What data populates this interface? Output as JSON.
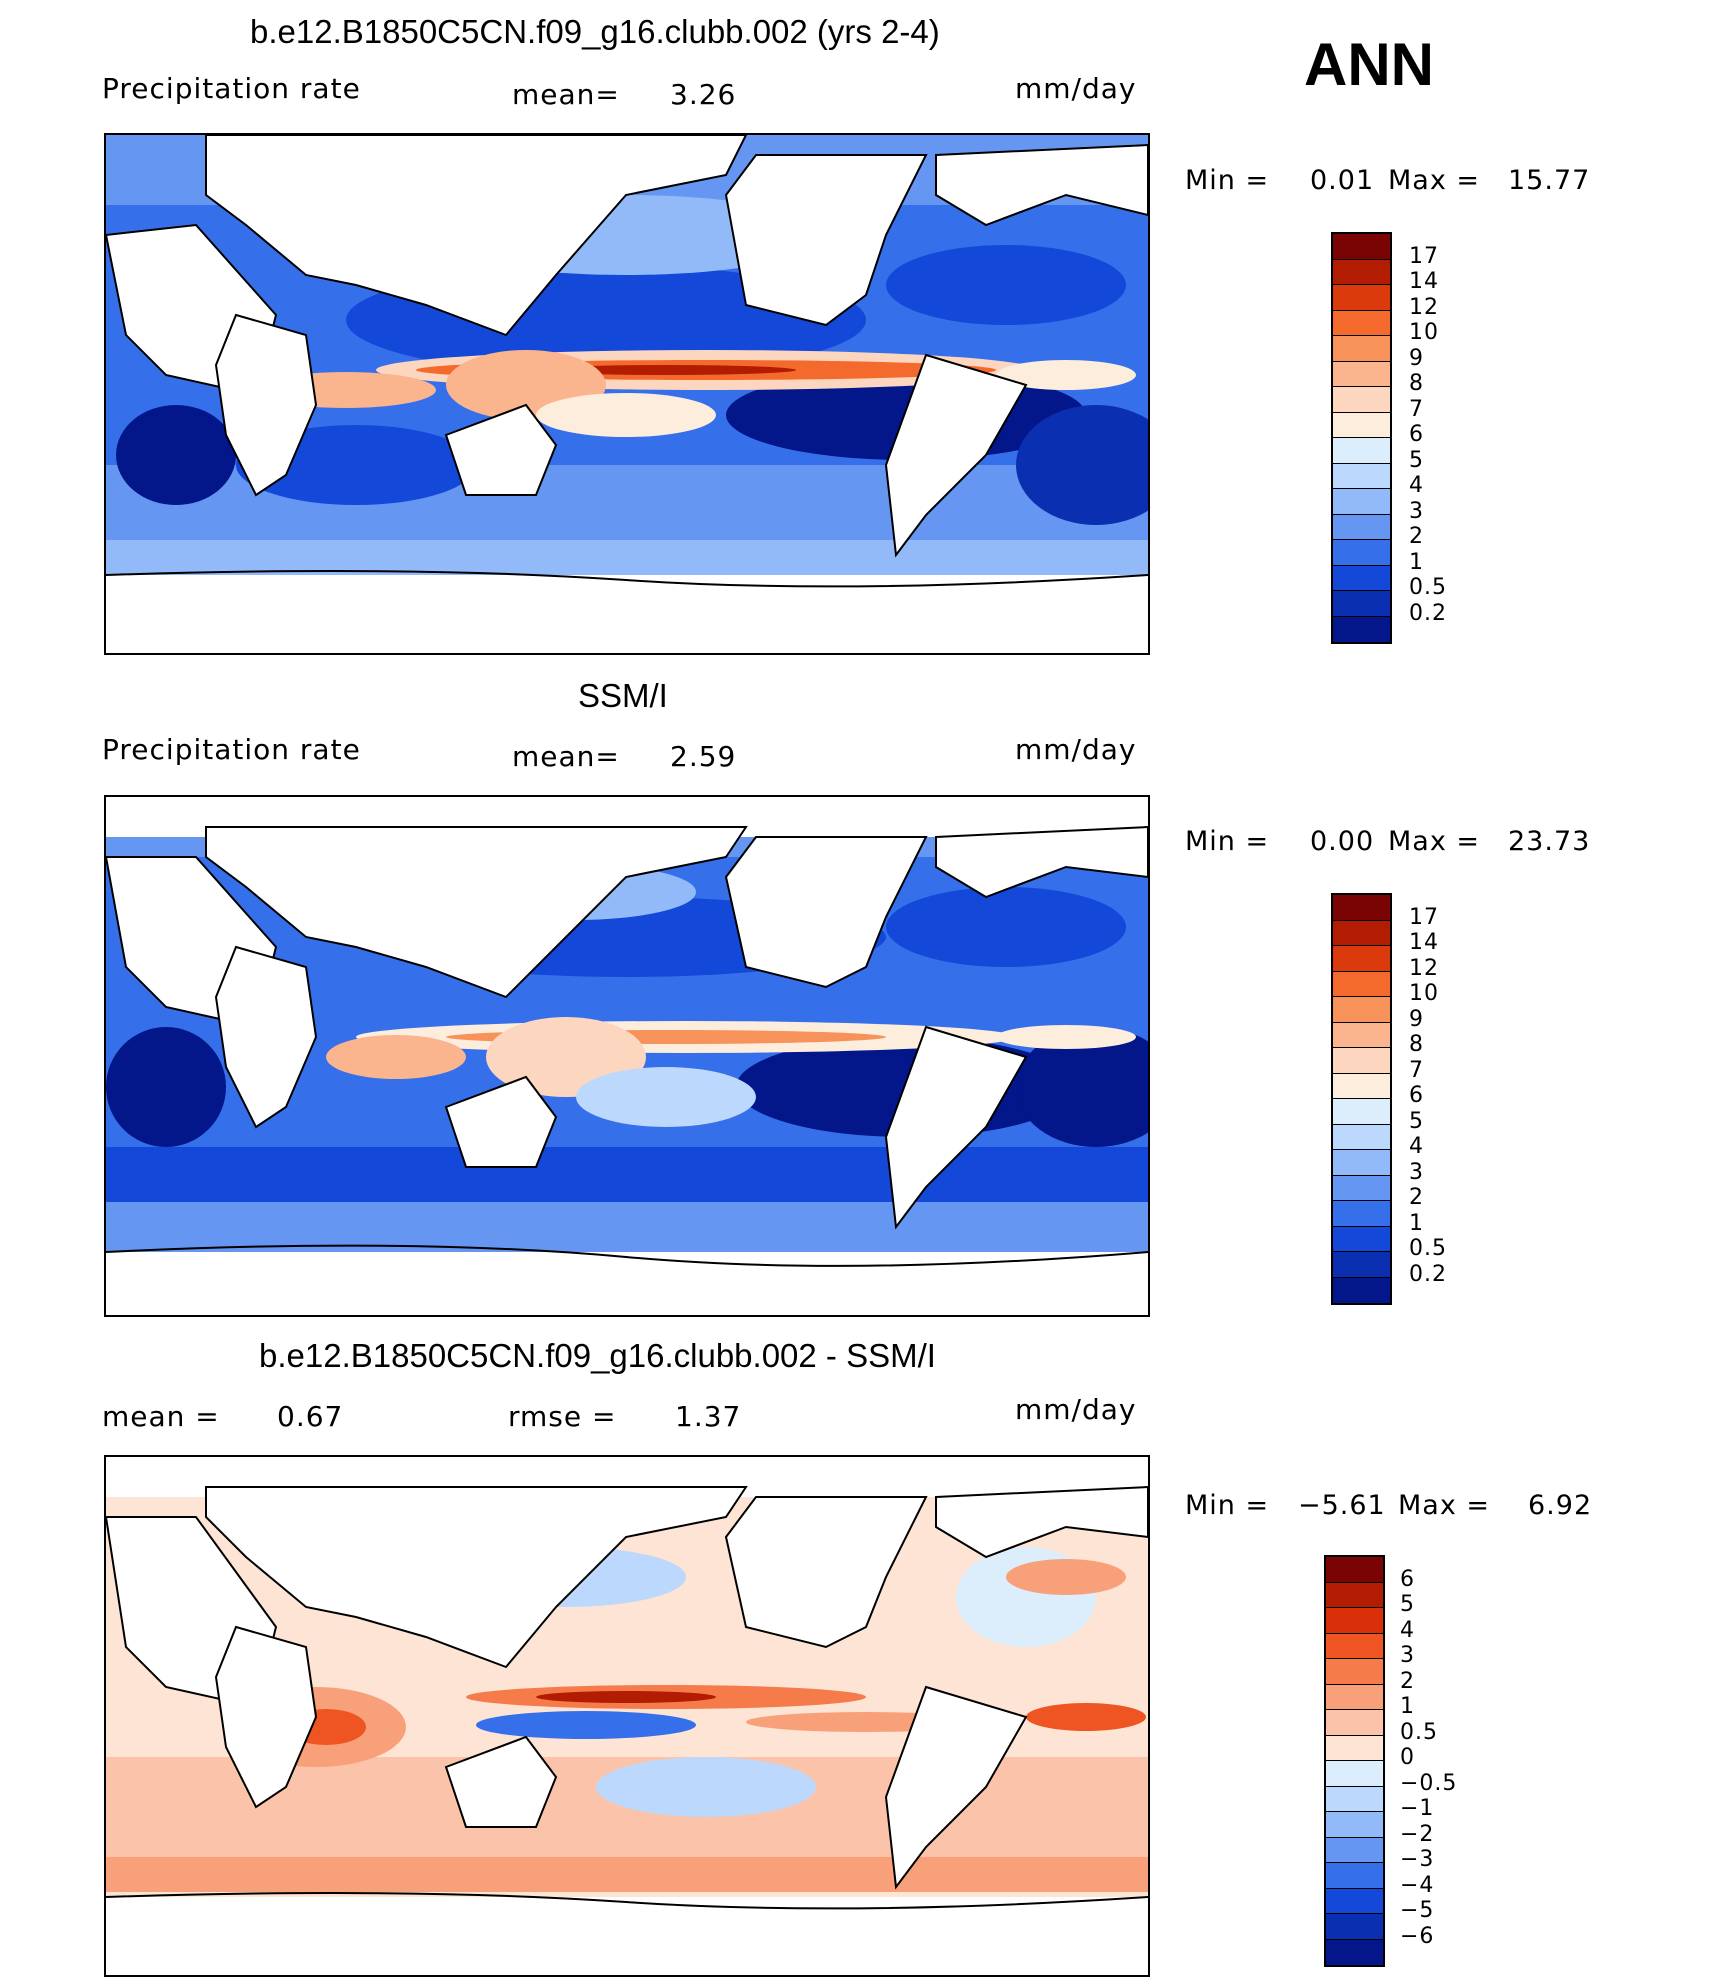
{
  "season": "ANN",
  "units": "mm/day",
  "panels": [
    {
      "title": "b.e12.B1850C5CN.f09_g16.clubb.002 (yrs 2-4)",
      "left_label": "Precipitation  rate",
      "stat1_label": "mean=",
      "stat1_value": "3.26",
      "stat2_label": "",
      "stat2_value": "",
      "min_label": "Min  =",
      "min_value": "0.01",
      "max_label": "Max  =",
      "max_value": "15.77",
      "colorbar_labels": [
        "17",
        "14",
        "12",
        "10",
        "9",
        "8",
        "7",
        "6",
        "5",
        "4",
        "3",
        "2",
        "1",
        "0.5",
        "0.2"
      ],
      "colors": [
        "#7a0403",
        "#b11c02",
        "#db3a0c",
        "#f36a2c",
        "#f7925a",
        "#fab48e",
        "#fcd6bf",
        "#fdeddc",
        "#dceefc",
        "#bcd8fc",
        "#93baf8",
        "#6597f2",
        "#3570ea",
        "#1448d8",
        "#0a2fb0",
        "#03168a"
      ]
    },
    {
      "title": "SSM/I",
      "left_label": "Precipitation  rate",
      "stat1_label": "mean=",
      "stat1_value": "2.59",
      "stat2_label": "",
      "stat2_value": "",
      "min_label": "Min  =",
      "min_value": "0.00",
      "max_label": "Max  =",
      "max_value": "23.73",
      "colorbar_labels": [
        "17",
        "14",
        "12",
        "10",
        "9",
        "8",
        "7",
        "6",
        "5",
        "4",
        "3",
        "2",
        "1",
        "0.5",
        "0.2"
      ],
      "colors": [
        "#7a0403",
        "#b11c02",
        "#db3a0c",
        "#f36a2c",
        "#f7925a",
        "#fab48e",
        "#fcd6bf",
        "#fdeddc",
        "#dceefc",
        "#bcd8fc",
        "#93baf8",
        "#6597f2",
        "#3570ea",
        "#1448d8",
        "#0a2fb0",
        "#03168a"
      ]
    },
    {
      "title": "b.e12.B1850C5CN.f09_g16.clubb.002 - SSM/I",
      "left_label": "mean  =",
      "left_value": "0.67",
      "stat1_label": "rmse  =",
      "stat1_value": "1.37",
      "min_label": "Min  =",
      "min_value": "−5.61",
      "max_label": "Max  =",
      "max_value": "6.92",
      "colorbar_labels": [
        "6",
        "5",
        "4",
        "3",
        "2",
        "1",
        "0.5",
        "0",
        "−0.5",
        "−1",
        "−2",
        "−3",
        "−4",
        "−5",
        "−6"
      ],
      "colors": [
        "#7a0403",
        "#b11c02",
        "#d9300a",
        "#ee5522",
        "#f57c4a",
        "#f8a07a",
        "#fbc4aa",
        "#fde4d4",
        "#dceefc",
        "#bcd8fc",
        "#93baf8",
        "#6597f2",
        "#3570ea",
        "#1448d8",
        "#0a2fb0",
        "#03168a"
      ]
    }
  ],
  "chart_data": [
    {
      "type": "heatmap",
      "title": "b.e12.B1850C5CN.f09_g16.clubb.002 (yrs 2-4)",
      "variable": "Precipitation  rate",
      "units": "mm/day",
      "mean": 3.26,
      "min": 0.01,
      "max": 15.77,
      "contour_levels": [
        0.2,
        0.5,
        1,
        2,
        3,
        4,
        5,
        6,
        7,
        8,
        9,
        10,
        12,
        14,
        17
      ]
    },
    {
      "type": "heatmap",
      "title": "SSM/I",
      "variable": "Precipitation  rate",
      "units": "mm/day",
      "mean": 2.59,
      "min": 0.0,
      "max": 23.73,
      "contour_levels": [
        0.2,
        0.5,
        1,
        2,
        3,
        4,
        5,
        6,
        7,
        8,
        9,
        10,
        12,
        14,
        17
      ]
    },
    {
      "type": "heatmap",
      "title": "b.e12.B1850C5CN.f09_g16.clubb.002 - SSM/I",
      "units": "mm/day",
      "mean": 0.67,
      "rmse": 1.37,
      "min": -5.61,
      "max": 6.92,
      "contour_levels": [
        -6,
        -5,
        -4,
        -3,
        -2,
        -1,
        -0.5,
        0,
        0.5,
        1,
        2,
        3,
        4,
        5,
        6
      ]
    }
  ]
}
